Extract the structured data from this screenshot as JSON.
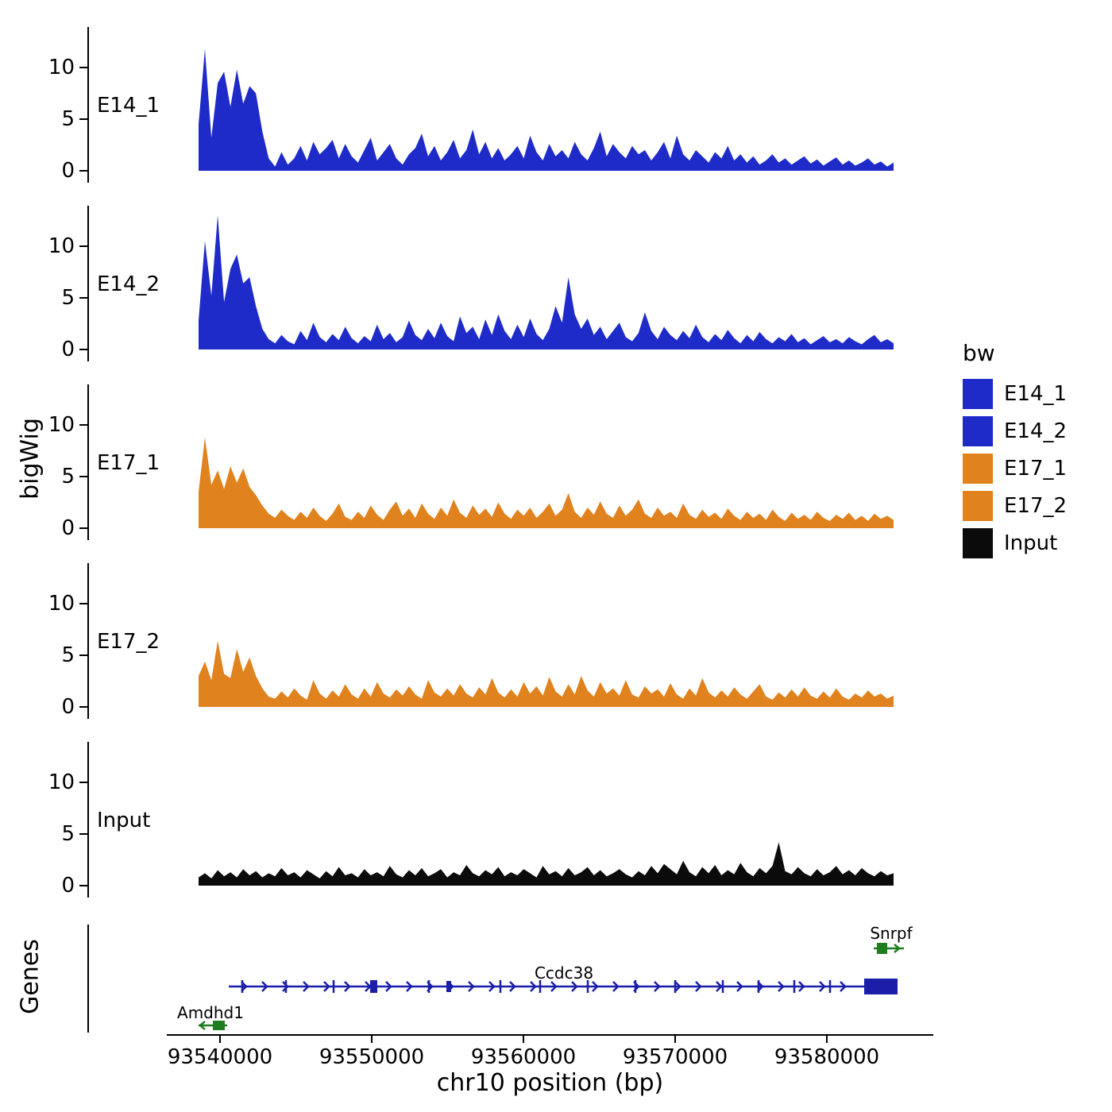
{
  "figure": {
    "y_axis_title": "bigWig",
    "genes_axis_title": "Genes",
    "x_axis_title": "chr10 position (bp)"
  },
  "yaxis": {
    "ticks": [
      "10",
      "5",
      "0"
    ]
  },
  "xaxis": {
    "ticks": [
      "93540000",
      "93550000",
      "93560000",
      "93570000",
      "93580000"
    ]
  },
  "legend": {
    "title": "bw",
    "items": [
      {
        "label": "E14_1",
        "color": "blue"
      },
      {
        "label": "E14_2",
        "color": "blue"
      },
      {
        "label": "E17_1",
        "color": "orange"
      },
      {
        "label": "E17_2",
        "color": "orange"
      },
      {
        "label": "Input",
        "color": "black"
      }
    ]
  },
  "colors": {
    "blue": "#1E2BC8",
    "orange": "#E0821E",
    "black": "#0B0B0B",
    "gene_blue": "#1A1EA8",
    "gene_green": "#1E7D1E"
  },
  "genes": [
    {
      "name": "Amdhd1",
      "color": "gene_green",
      "strand": "-",
      "approx_start": 93538600,
      "approx_end": 93540200
    },
    {
      "name": "Ccdc38",
      "color": "gene_blue",
      "strand": "+",
      "approx_start": 93540300,
      "approx_end": 93583300
    },
    {
      "name": "Snrpf",
      "color": "gene_green",
      "strand": "+",
      "approx_start": 93582800,
      "approx_end": 93584300
    }
  ],
  "chart_data": {
    "type": "area",
    "title": "",
    "xlabel": "chr10 position (bp)",
    "ylabel": "bigWig",
    "x_axis": {
      "start": 93538600,
      "end": 93584400,
      "tick_values": [
        93540000,
        93550000,
        93560000,
        93570000,
        93580000
      ]
    },
    "y_axis": {
      "tick_values": [
        0,
        5,
        10
      ],
      "ylim": [
        0,
        13
      ]
    },
    "legend_position": "right",
    "grid": false,
    "series": [
      {
        "name": "E14_1",
        "color": "blue",
        "values": [
          4.5,
          11.8,
          3.2,
          8.5,
          9.6,
          6.2,
          9.8,
          6.5,
          8.2,
          7.5,
          3.8,
          1.2,
          0.4,
          1.8,
          0.6,
          1.2,
          2.4,
          1.0,
          2.8,
          1.6,
          2.2,
          3.0,
          1.2,
          2.6,
          1.4,
          0.8,
          2.0,
          3.2,
          1.0,
          1.8,
          2.6,
          1.2,
          0.6,
          1.6,
          2.2,
          3.6,
          1.4,
          2.4,
          1.0,
          1.8,
          3.0,
          1.2,
          2.0,
          4.0,
          1.6,
          2.8,
          1.2,
          2.2,
          1.0,
          1.6,
          2.4,
          1.2,
          3.4,
          1.8,
          1.0,
          2.6,
          1.4,
          2.0,
          1.2,
          2.8,
          1.6,
          1.0,
          2.2,
          3.8,
          1.4,
          2.6,
          1.8,
          1.2,
          2.4,
          1.6,
          2.0,
          1.0,
          1.8,
          2.8,
          1.2,
          3.4,
          1.6,
          1.0,
          2.0,
          1.4,
          0.8,
          1.8,
          1.2,
          2.4,
          1.0,
          1.6,
          0.8,
          1.4,
          0.6,
          1.0,
          1.6,
          0.8,
          1.2,
          0.6,
          1.0,
          1.4,
          0.7,
          1.1,
          0.5,
          0.9,
          1.3,
          0.6,
          1.0,
          0.5,
          0.8,
          1.2,
          0.6,
          0.9,
          0.4,
          0.8
        ]
      },
      {
        "name": "E14_2",
        "color": "blue",
        "values": [
          2.8,
          10.5,
          5.2,
          13.0,
          4.6,
          7.8,
          9.2,
          6.4,
          7.0,
          4.2,
          2.0,
          1.0,
          0.6,
          1.4,
          0.8,
          0.5,
          1.8,
          0.9,
          2.6,
          1.2,
          0.7,
          1.5,
          0.9,
          2.2,
          1.1,
          0.6,
          1.3,
          0.8,
          2.4,
          1.0,
          1.6,
          0.7,
          1.2,
          2.8,
          1.4,
          0.9,
          2.0,
          1.1,
          2.6,
          1.3,
          0.8,
          3.2,
          1.6,
          2.2,
          1.0,
          2.9,
          1.4,
          3.4,
          1.8,
          1.0,
          2.4,
          1.2,
          3.0,
          1.5,
          0.9,
          2.0,
          4.2,
          2.6,
          7.0,
          3.4,
          2.0,
          3.0,
          1.4,
          2.2,
          1.0,
          1.8,
          2.6,
          1.2,
          0.8,
          1.6,
          3.6,
          1.8,
          1.0,
          2.2,
          1.4,
          0.9,
          1.8,
          1.1,
          2.4,
          1.2,
          0.7,
          1.5,
          0.9,
          1.9,
          1.1,
          0.6,
          1.4,
          0.8,
          1.7,
          1.0,
          0.6,
          1.2,
          0.8,
          1.5,
          0.7,
          1.1,
          0.5,
          0.9,
          1.3,
          0.7,
          1.0,
          0.6,
          1.2,
          0.8,
          0.5,
          1.0,
          1.4,
          0.7,
          1.0,
          0.6
        ]
      },
      {
        "name": "E17_1",
        "color": "orange",
        "values": [
          3.5,
          8.8,
          4.2,
          5.6,
          3.8,
          6.0,
          4.4,
          5.8,
          4.0,
          3.2,
          2.2,
          1.4,
          1.0,
          1.8,
          1.2,
          0.8,
          1.6,
          1.0,
          2.0,
          1.2,
          0.7,
          1.4,
          2.4,
          1.1,
          0.8,
          1.6,
          1.0,
          2.2,
          1.3,
          0.8,
          1.8,
          2.6,
          1.2,
          1.9,
          1.0,
          2.4,
          1.4,
          0.9,
          2.0,
          1.2,
          2.8,
          1.5,
          1.0,
          2.2,
          1.3,
          1.9,
          1.1,
          2.5,
          1.4,
          0.9,
          1.8,
          1.2,
          2.0,
          1.0,
          1.6,
          2.4,
          1.2,
          1.8,
          3.4,
          1.6,
          1.0,
          2.0,
          1.3,
          2.6,
          1.4,
          1.0,
          2.2,
          1.2,
          1.8,
          2.8,
          1.4,
          1.0,
          2.0,
          1.2,
          1.6,
          1.0,
          2.4,
          1.3,
          0.9,
          1.8,
          1.1,
          1.5,
          0.9,
          1.9,
          1.2,
          0.8,
          1.6,
          1.0,
          1.4,
          0.8,
          1.8,
          1.1,
          0.7,
          1.5,
          0.9,
          1.3,
          0.8,
          1.6,
          1.0,
          0.7,
          1.3,
          0.9,
          1.5,
          0.8,
          1.2,
          0.7,
          1.4,
          0.9,
          1.2,
          0.8
        ]
      },
      {
        "name": "E17_2",
        "color": "orange",
        "values": [
          3.0,
          4.4,
          2.6,
          6.4,
          3.2,
          2.8,
          5.6,
          3.4,
          4.8,
          3.0,
          1.8,
          1.0,
          0.8,
          1.5,
          0.9,
          1.8,
          1.1,
          0.7,
          2.6,
          1.3,
          0.8,
          1.6,
          1.0,
          2.2,
          1.2,
          0.8,
          1.8,
          1.0,
          2.4,
          1.3,
          0.9,
          1.7,
          1.1,
          2.0,
          1.2,
          0.8,
          2.6,
          1.4,
          1.0,
          1.8,
          1.1,
          2.2,
          1.3,
          0.9,
          1.9,
          1.2,
          2.8,
          1.4,
          0.9,
          1.7,
          1.0,
          2.4,
          1.3,
          2.0,
          1.1,
          2.9,
          1.5,
          1.0,
          2.2,
          1.2,
          3.0,
          1.6,
          1.0,
          2.4,
          1.3,
          1.8,
          1.1,
          2.6,
          1.2,
          0.9,
          2.0,
          1.3,
          1.7,
          1.0,
          2.3,
          1.2,
          0.8,
          1.8,
          1.1,
          2.8,
          1.4,
          0.9,
          1.6,
          1.0,
          1.9,
          1.2,
          0.8,
          1.5,
          2.2,
          1.0,
          0.7,
          1.4,
          0.9,
          1.7,
          1.0,
          1.9,
          1.1,
          0.8,
          1.5,
          0.9,
          1.8,
          1.0,
          0.7,
          1.3,
          0.9,
          1.6,
          1.0,
          1.3,
          0.8,
          1.1
        ]
      },
      {
        "name": "Input",
        "color": "black",
        "values": [
          0.8,
          1.2,
          0.7,
          1.5,
          0.9,
          1.3,
          0.8,
          1.6,
          1.0,
          1.4,
          0.8,
          1.2,
          0.9,
          1.7,
          1.0,
          1.3,
          0.8,
          1.5,
          1.1,
          0.7,
          1.4,
          0.9,
          1.8,
          1.0,
          1.2,
          0.8,
          1.6,
          1.0,
          1.3,
          0.9,
          1.9,
          1.1,
          0.8,
          1.5,
          1.0,
          1.7,
          0.9,
          1.2,
          1.6,
          0.8,
          1.3,
          1.0,
          2.0,
          1.2,
          0.9,
          1.5,
          1.1,
          1.8,
          0.9,
          1.3,
          1.0,
          1.6,
          1.2,
          0.8,
          1.9,
          1.1,
          1.4,
          0.9,
          1.7,
          1.0,
          1.3,
          1.8,
          1.0,
          1.5,
          0.9,
          1.2,
          1.6,
          1.1,
          0.8,
          1.4,
          1.0,
          1.9,
          1.2,
          2.1,
          1.6,
          1.1,
          2.4,
          1.3,
          0.9,
          1.8,
          1.2,
          2.0,
          1.0,
          1.5,
          1.1,
          2.2,
          1.3,
          0.9,
          1.7,
          1.2,
          1.9,
          4.2,
          1.4,
          1.1,
          1.8,
          1.2,
          0.9,
          1.6,
          1.0,
          1.3,
          1.9,
          1.1,
          1.5,
          1.0,
          1.7,
          1.2,
          0.9,
          1.4,
          1.0,
          1.2
        ]
      }
    ]
  }
}
